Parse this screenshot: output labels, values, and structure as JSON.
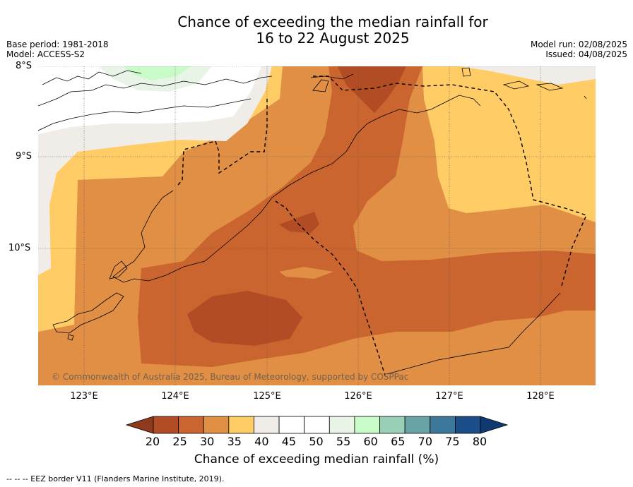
{
  "title": {
    "line1": "Chance of exceeding the median rainfall for",
    "line2": "16 to 22 August 2025"
  },
  "meta": {
    "base_period": "Base period: 1981-2018",
    "model": "Model: ACCESS-S2",
    "model_run": "Model run: 02/08/2025",
    "issued": "Issued: 04/08/2025"
  },
  "map": {
    "lat_labels": [
      "8°S",
      "9°S",
      "10°S"
    ],
    "lon_labels": [
      "123°E",
      "124°E",
      "125°E",
      "126°E",
      "127°E",
      "128°E"
    ],
    "copyright": "© Commonwealth of Australia 2025, Bureau of Meteorology, supported by COSPPac",
    "colors": {
      "20-25": "#b14c24",
      "25-30": "#cb6530",
      "30-35": "#e08f45",
      "35-40": "#ffcc66",
      "40-45": "#f0ece7",
      "45-55": "#ffffff",
      "55-60": "#e8f5e6",
      "60-65": "#c9fbc9"
    }
  },
  "colorbar": {
    "ticks": [
      "20",
      "25",
      "30",
      "35",
      "40",
      "45",
      "50",
      "55",
      "60",
      "65",
      "70",
      "75",
      "80"
    ],
    "colors": [
      "#b14c24",
      "#cb6530",
      "#e08f45",
      "#ffcc66",
      "#f0ece7",
      "#ffffff",
      "#ffffff",
      "#e8f5e6",
      "#c9fbc9",
      "#99cfb7",
      "#6aa3a6",
      "#3d7799",
      "#1b4e88"
    ],
    "under_color": "#8f3a1c",
    "over_color": "#0f3a70",
    "label": "Chance of exceeding median rainfall (%)"
  },
  "footnote": "--  --  -- EEZ border V11 (Flanders Marine Institute, 2019)."
}
